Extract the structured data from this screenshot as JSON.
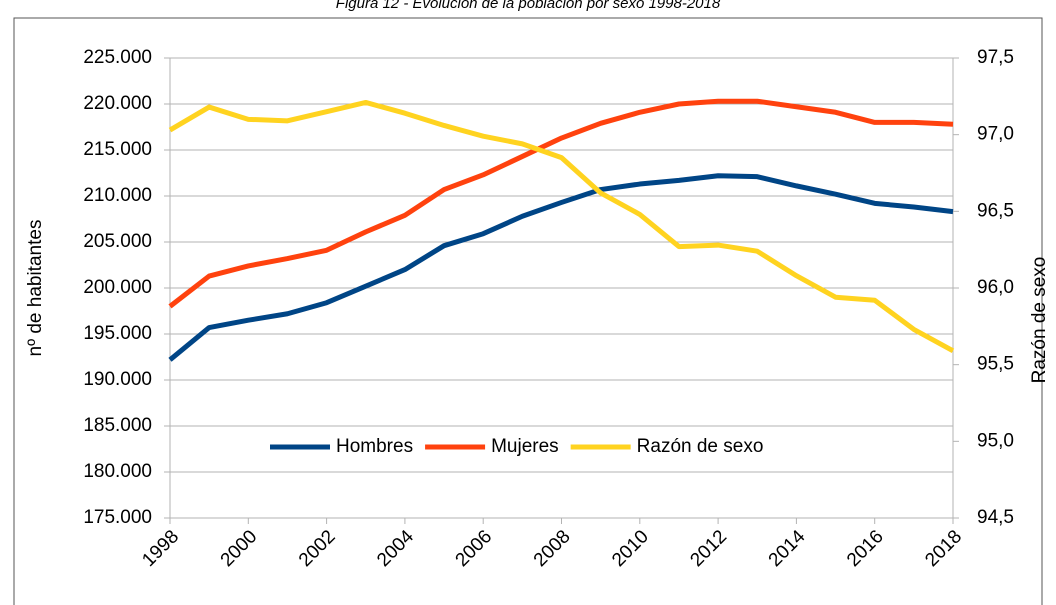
{
  "chart_data": {
    "type": "line",
    "title": "Figura 12 - Evolución de la población por sexo 1998-2018",
    "y_label": "nº de habitantes",
    "y2_label": "Razón de sexo",
    "x": [
      1998,
      1999,
      2000,
      2001,
      2002,
      2003,
      2004,
      2005,
      2006,
      2007,
      2008,
      2009,
      2010,
      2011,
      2012,
      2013,
      2014,
      2015,
      2016,
      2017,
      2018
    ],
    "xlim": [
      1998,
      2018
    ],
    "xticks": [
      1998,
      2000,
      2002,
      2004,
      2006,
      2008,
      2010,
      2012,
      2014,
      2016,
      2018
    ],
    "ylim": [
      175000,
      225000
    ],
    "yticks": [
      {
        "value": 175000,
        "label": "175.000"
      },
      {
        "value": 180000,
        "label": "180.000"
      },
      {
        "value": 185000,
        "label": "185.000"
      },
      {
        "value": 190000,
        "label": "190.000"
      },
      {
        "value": 195000,
        "label": "195.000"
      },
      {
        "value": 200000,
        "label": "200.000"
      },
      {
        "value": 205000,
        "label": "205.000"
      },
      {
        "value": 210000,
        "label": "210.000"
      },
      {
        "value": 215000,
        "label": "215.000"
      },
      {
        "value": 220000,
        "label": "220.000"
      },
      {
        "value": 225000,
        "label": "225.000"
      }
    ],
    "y2lim": [
      94.5,
      97.5
    ],
    "y2ticks": [
      {
        "value": 94.5,
        "label": "94,5"
      },
      {
        "value": 95.0,
        "label": "95,0"
      },
      {
        "value": 95.5,
        "label": "95,5"
      },
      {
        "value": 96.0,
        "label": "96,0"
      },
      {
        "value": 96.5,
        "label": "96,5"
      },
      {
        "value": 97.0,
        "label": "97,0"
      },
      {
        "value": 97.5,
        "label": "97,5"
      }
    ],
    "grid": true,
    "legend": "bottom",
    "series": [
      {
        "name": "Hombres",
        "color": "#004586",
        "values": [
          192200,
          195700,
          196500,
          197200,
          198400,
          200200,
          202000,
          204600,
          205900,
          207800,
          209300,
          210700,
          211300,
          211700,
          212200,
          212100,
          211100,
          210200,
          209200,
          208800,
          208300
        ]
      },
      {
        "name": "Mujeres",
        "color": "#ff420e",
        "values": [
          198000,
          201300,
          202400,
          203200,
          204100,
          206100,
          207900,
          210700,
          212300,
          214300,
          216300,
          217900,
          219100,
          220000,
          220300,
          220300,
          219700,
          219100,
          218000,
          218000,
          217800
        ]
      },
      {
        "name": "Razón de sexo",
        "color": "#ffd320",
        "axis": "y2",
        "values": [
          97.03,
          97.18,
          97.1,
          97.09,
          97.15,
          97.21,
          97.14,
          97.06,
          96.99,
          96.94,
          96.85,
          96.62,
          96.48,
          96.27,
          96.28,
          96.24,
          96.08,
          95.94,
          95.92,
          95.73,
          95.59
        ]
      }
    ]
  }
}
